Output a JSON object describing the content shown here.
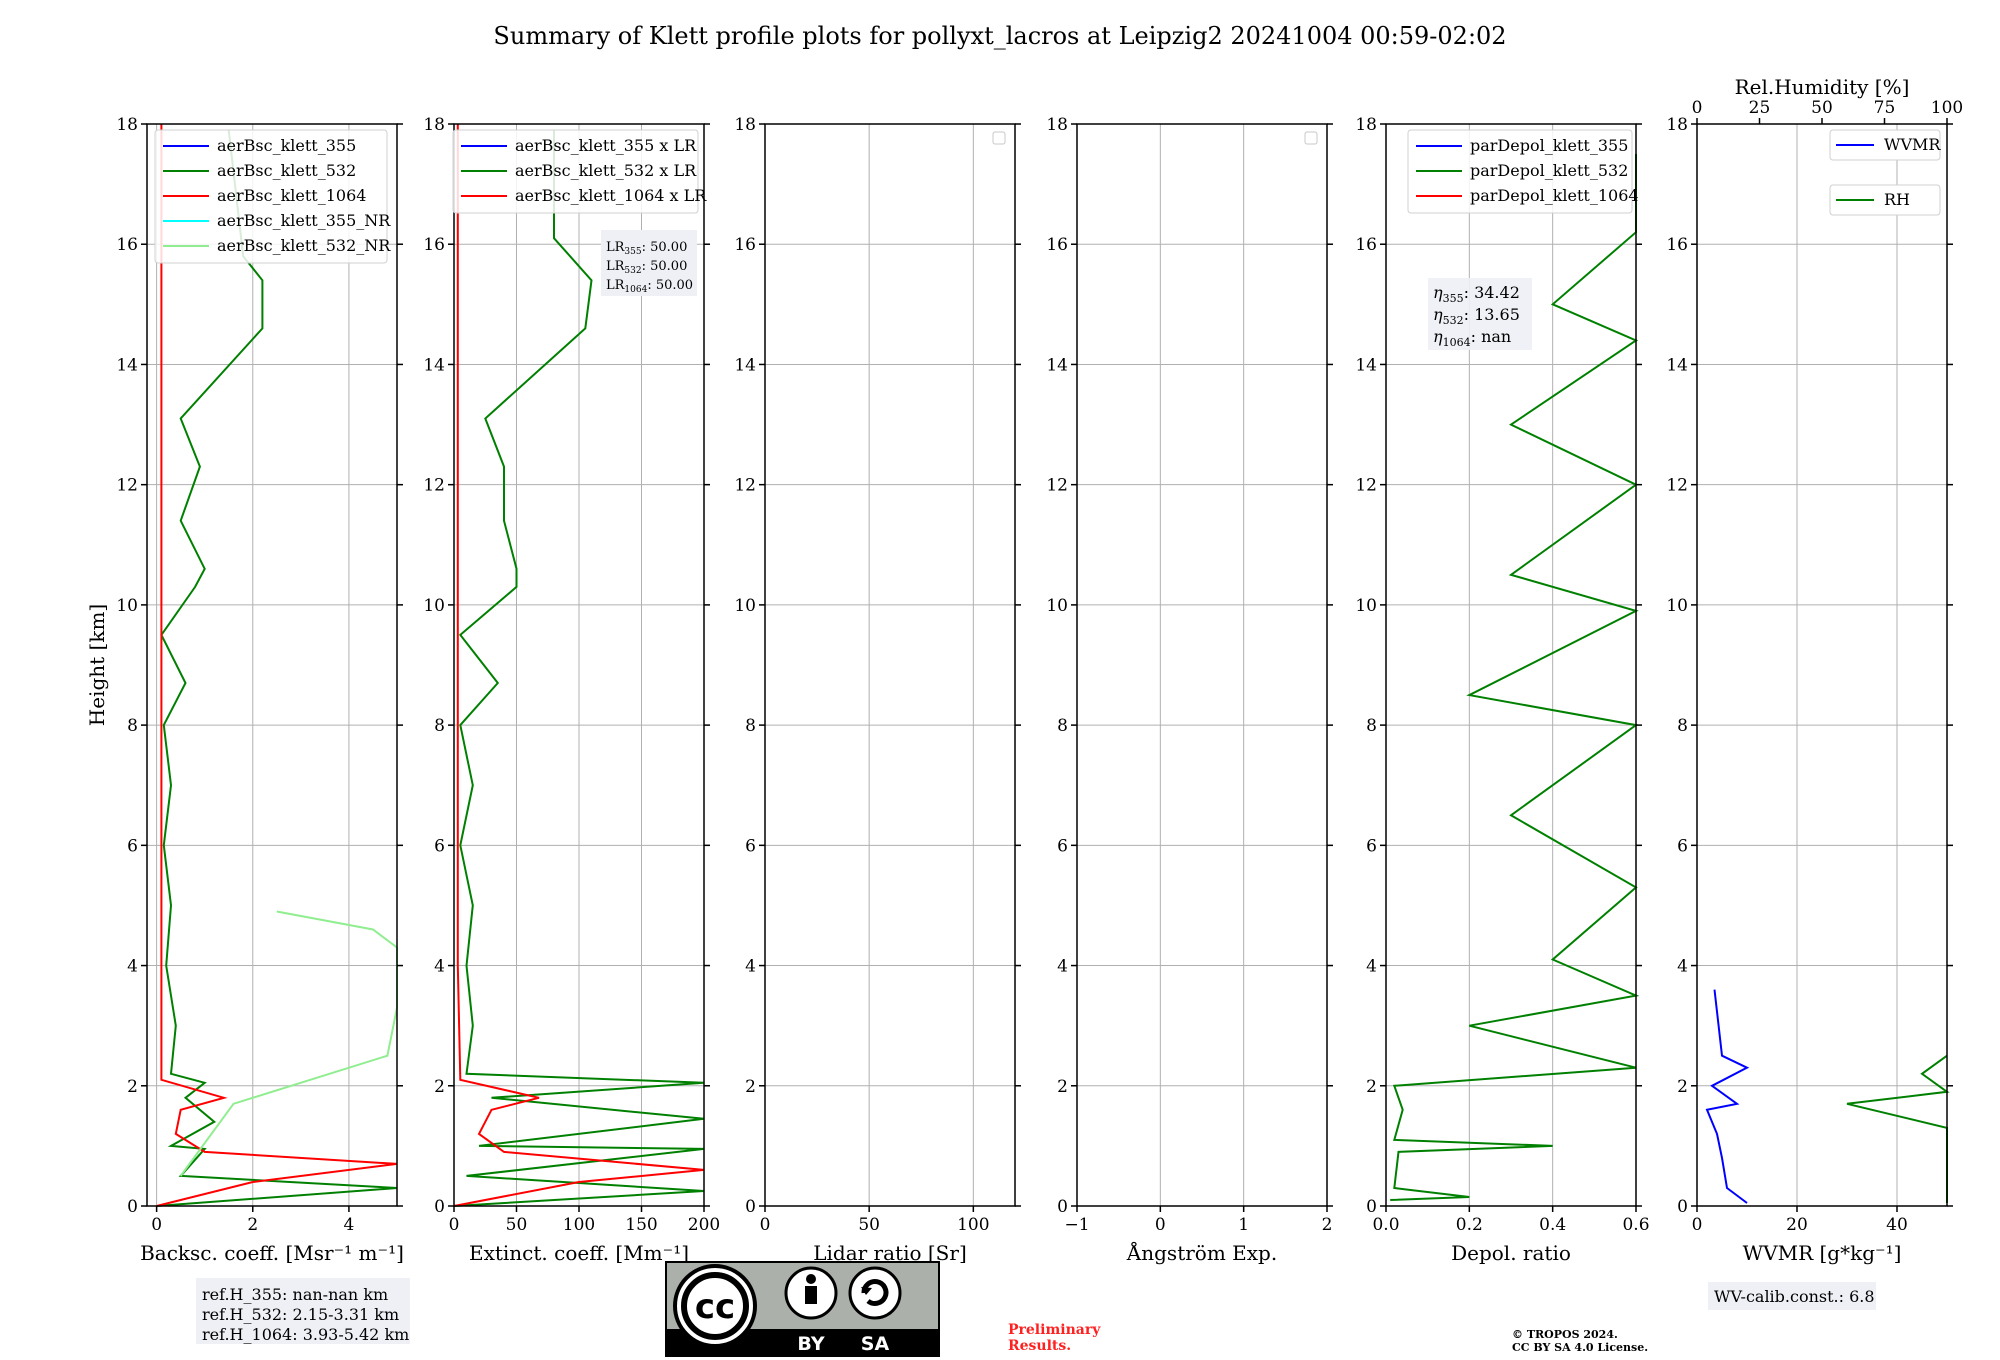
{
  "page": {
    "title": "Summary of Klett profile plots for pollyxt_lacros at Leipzig2 20241004 00:59-02:02",
    "preliminary": [
      "Preliminary",
      "Results."
    ],
    "copyright": [
      "© TROPOS 2024.",
      "CC BY SA 4.0 License."
    ],
    "license_badge": {
      "icon": "cc-by-sa-badge",
      "by": "BY",
      "sa": "SA"
    },
    "ref_heights": [
      "ref.H_355: nan-nan km",
      "ref.H_532: 2.15-3.31 km",
      "ref.H_1064: 3.93-5.42 km"
    ],
    "lr_box": [
      {
        "base": "LR",
        "sub": "355",
        "val": ": 50.00"
      },
      {
        "base": "LR",
        "sub": "532",
        "val": ": 50.00"
      },
      {
        "base": "LR",
        "sub": "1064",
        "val": ": 50.00"
      }
    ],
    "eta_box": [
      {
        "base": "η",
        "sub": "355",
        "val": ": 34.42"
      },
      {
        "base": "η",
        "sub": "532",
        "val": ": 13.65"
      },
      {
        "base": "η",
        "sub": "1064",
        "val": ": nan"
      }
    ],
    "wv_calib": "WV-calib.const.: 6.8"
  },
  "chart_data": [
    {
      "type": "line",
      "id": "bsc",
      "xlabel": "Backsc. coeff. [Msr⁻¹ m⁻¹]",
      "ylabel": "Height [km]",
      "xlim": [
        -0.2,
        5
      ],
      "ylim": [
        0,
        18
      ],
      "xticks": [
        0,
        2,
        4
      ],
      "yticks": [
        0,
        2,
        4,
        6,
        8,
        10,
        12,
        14,
        16,
        18
      ],
      "grid": true,
      "legend": "top-right",
      "series": [
        {
          "name": "aerBsc_klett_355",
          "color": "#0000ff",
          "points": []
        },
        {
          "name": "aerBsc_klett_532",
          "color": "#008000",
          "points": [
            [
              0,
              0
            ],
            [
              5,
              0.3
            ],
            [
              0.5,
              0.5
            ],
            [
              1,
              0.95
            ],
            [
              0.3,
              1.0
            ],
            [
              1.2,
              1.4
            ],
            [
              0.6,
              1.8
            ],
            [
              1,
              2.05
            ],
            [
              0.3,
              2.2
            ],
            [
              0.4,
              3
            ],
            [
              0.2,
              4
            ],
            [
              0.3,
              5
            ],
            [
              0.15,
              6
            ],
            [
              0.3,
              7
            ],
            [
              0.15,
              8
            ],
            [
              0.6,
              8.7
            ],
            [
              0.1,
              9.5
            ],
            [
              0.8,
              10.3
            ],
            [
              1,
              10.6
            ],
            [
              0.5,
              11.4
            ],
            [
              0.9,
              12.3
            ],
            [
              0.5,
              13.1
            ],
            [
              2.2,
              14.6
            ],
            [
              2.2,
              15.4
            ],
            [
              1.8,
              15.8
            ],
            [
              1.5,
              17.9
            ]
          ]
        },
        {
          "name": "aerBsc_klett_1064",
          "color": "#ff0000",
          "points": [
            [
              0,
              0
            ],
            [
              2,
              0.4
            ],
            [
              5,
              0.7
            ],
            [
              1,
              0.9
            ],
            [
              0.4,
              1.2
            ],
            [
              0.5,
              1.6
            ],
            [
              1.4,
              1.8
            ],
            [
              0.1,
              2.1
            ],
            [
              0.1,
              4
            ],
            [
              0.1,
              10
            ],
            [
              0.1,
              18
            ]
          ]
        },
        {
          "name": "aerBsc_klett_355_NR",
          "color": "#00ffff",
          "points": []
        },
        {
          "name": "aerBsc_klett_532_NR",
          "color": "#90ee90",
          "points": [
            [
              0.5,
              0.5
            ],
            [
              1.6,
              1.7
            ],
            [
              4.8,
              2.5
            ],
            [
              5,
              3.3
            ],
            [
              5,
              3.8
            ],
            [
              5,
              4.3
            ],
            [
              4.5,
              4.6
            ],
            [
              2.5,
              4.9
            ]
          ]
        }
      ]
    },
    {
      "type": "line",
      "id": "ext",
      "xlabel": "Extinct. coeff. [Mm⁻¹]",
      "xlim": [
        0,
        200
      ],
      "ylim": [
        0,
        18
      ],
      "xticks": [
        0,
        50,
        100,
        150,
        200
      ],
      "yticks": [
        0,
        2,
        4,
        6,
        8,
        10,
        12,
        14,
        16,
        18
      ],
      "grid": true,
      "legend": "top-left",
      "series": [
        {
          "name": "aerBsc_klett_355 x LR",
          "color": "#0000ff",
          "points": []
        },
        {
          "name": "aerBsc_klett_532 x LR",
          "color": "#008000",
          "points": [
            [
              0,
              0
            ],
            [
              200,
              0.25
            ],
            [
              10,
              0.5
            ],
            [
              200,
              0.95
            ],
            [
              20,
              1.0
            ],
            [
              200,
              1.45
            ],
            [
              30,
              1.8
            ],
            [
              200,
              2.05
            ],
            [
              10,
              2.2
            ],
            [
              15,
              3
            ],
            [
              10,
              4
            ],
            [
              15,
              5
            ],
            [
              5,
              6
            ],
            [
              15,
              7
            ],
            [
              5,
              8
            ],
            [
              35,
              8.7
            ],
            [
              5,
              9.5
            ],
            [
              50,
              10.3
            ],
            [
              50,
              10.6
            ],
            [
              40,
              11.4
            ],
            [
              40,
              12.3
            ],
            [
              25,
              13.1
            ],
            [
              105,
              14.6
            ],
            [
              110,
              15.4
            ],
            [
              80,
              16.1
            ],
            [
              80,
              17.9
            ]
          ]
        },
        {
          "name": "aerBsc_klett_1064 x LR",
          "color": "#ff0000",
          "points": [
            [
              0,
              0
            ],
            [
              100,
              0.4
            ],
            [
              200,
              0.6
            ],
            [
              40,
              0.9
            ],
            [
              20,
              1.2
            ],
            [
              30,
              1.6
            ],
            [
              68,
              1.8
            ],
            [
              5,
              2.1
            ],
            [
              3,
              4
            ],
            [
              3,
              10
            ],
            [
              3,
              18
            ]
          ]
        }
      ]
    },
    {
      "type": "line",
      "id": "lr",
      "xlabel": "Lidar ratio [Sr]",
      "xlim": [
        0,
        120
      ],
      "ylim": [
        0,
        18
      ],
      "xticks": [
        0,
        50,
        100
      ],
      "yticks": [
        0,
        2,
        4,
        6,
        8,
        10,
        12,
        14,
        16,
        18
      ],
      "grid": true,
      "legend": "top-right",
      "series": []
    },
    {
      "type": "line",
      "id": "ae",
      "xlabel": "Ångström Exp.",
      "xlim": [
        -1,
        2
      ],
      "ylim": [
        0,
        18
      ],
      "xticks": [
        -1,
        0,
        1,
        2
      ],
      "yticks": [
        0,
        2,
        4,
        6,
        8,
        10,
        12,
        14,
        16,
        18
      ],
      "grid": true,
      "legend": "top-right",
      "series": []
    },
    {
      "type": "line",
      "id": "depol",
      "xlabel": "Depol. ratio",
      "xlim": [
        0,
        0.6
      ],
      "ylim": [
        0,
        18
      ],
      "xticks": [
        0.0,
        0.2,
        0.4,
        0.6
      ],
      "yticks": [
        0,
        2,
        4,
        6,
        8,
        10,
        12,
        14,
        16,
        18
      ],
      "grid": true,
      "legend": "top-right",
      "series": [
        {
          "name": "parDepol_klett_355",
          "color": "#0000ff",
          "points": []
        },
        {
          "name": "parDepol_klett_532",
          "color": "#008000",
          "points": [
            [
              0.01,
              0.1
            ],
            [
              0.2,
              0.15
            ],
            [
              0.02,
              0.3
            ],
            [
              0.03,
              0.9
            ],
            [
              0.4,
              1.0
            ],
            [
              0.02,
              1.1
            ],
            [
              0.04,
              1.6
            ],
            [
              0.02,
              2.0
            ],
            [
              0.6,
              2.3
            ],
            [
              0.2,
              3
            ],
            [
              0.6,
              3.5
            ],
            [
              0.4,
              4.1
            ],
            [
              0.6,
              5.3
            ],
            [
              0.3,
              6.5
            ],
            [
              0.6,
              8.0
            ],
            [
              0.2,
              8.5
            ],
            [
              0.6,
              9.9
            ],
            [
              0.3,
              10.5
            ],
            [
              0.6,
              12.0
            ],
            [
              0.3,
              13.0
            ],
            [
              0.6,
              14.4
            ],
            [
              0.4,
              15.0
            ],
            [
              0.6,
              16.2
            ],
            [
              0.6,
              17.5
            ]
          ]
        },
        {
          "name": "parDepol_klett_1064",
          "color": "#ff0000",
          "points": []
        }
      ]
    },
    {
      "type": "line",
      "id": "wv",
      "xlabel": "WVMR [g*kg⁻¹]",
      "xlabel_top": "Rel.Humidity [%]",
      "xlim": [
        0,
        50
      ],
      "xlim_top": [
        0,
        100
      ],
      "ylim": [
        0,
        18
      ],
      "xticks": [
        0,
        20,
        40
      ],
      "xticks_top": [
        0,
        25,
        50,
        75,
        100
      ],
      "yticks": [
        0,
        2,
        4,
        6,
        8,
        10,
        12,
        14,
        16,
        18
      ],
      "grid": true,
      "legend": "top-right",
      "series": [
        {
          "name": "WVMR",
          "color": "#0000ff",
          "points": [
            [
              10,
              0.05
            ],
            [
              6,
              0.3
            ],
            [
              5,
              0.8
            ],
            [
              4,
              1.2
            ],
            [
              2,
              1.6
            ],
            [
              8,
              1.7
            ],
            [
              3,
              2.0
            ],
            [
              10,
              2.3
            ],
            [
              5,
              2.5
            ],
            [
              3.5,
              3.6
            ]
          ]
        },
        {
          "name": "RH",
          "color": "#008000",
          "points": [
            [
              96,
              0.05
            ],
            [
              72,
              0.5
            ],
            [
              70,
              1.0
            ],
            [
              60,
              1.3
            ],
            [
              30,
              1.7
            ],
            [
              100,
              1.9
            ],
            [
              45,
              2.2
            ],
            [
              100,
              2.5
            ]
          ]
        }
      ]
    }
  ]
}
